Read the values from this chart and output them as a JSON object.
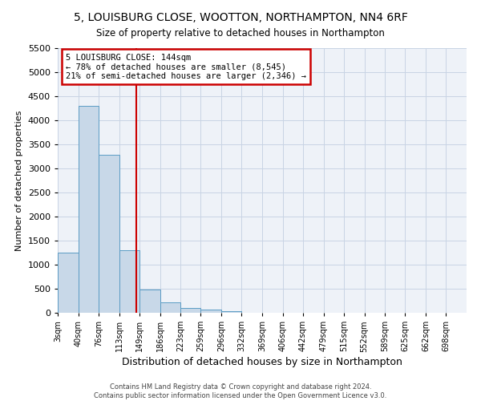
{
  "title1": "5, LOUISBURG CLOSE, WOOTTON, NORTHAMPTON, NN4 6RF",
  "title2": "Size of property relative to detached houses in Northampton",
  "xlabel": "Distribution of detached houses by size in Northampton",
  "ylabel": "Number of detached properties",
  "footnote1": "Contains HM Land Registry data © Crown copyright and database right 2024.",
  "footnote2": "Contains public sector information licensed under the Open Government Licence v3.0.",
  "annotation_title": "5 LOUISBURG CLOSE: 144sqm",
  "annotation_line1": "← 78% of detached houses are smaller (8,545)",
  "annotation_line2": "21% of semi-detached houses are larger (2,346) →",
  "property_size": 144,
  "bar_color": "#c8d8e8",
  "bar_edge_color": "#5b9cc4",
  "vline_color": "#cc0000",
  "annotation_box_edge_color": "#cc0000",
  "grid_color": "#c8d4e4",
  "background_color": "#eef2f8",
  "bin_edges": [
    3,
    40,
    76,
    113,
    149,
    186,
    223,
    259,
    296,
    332,
    369,
    406,
    442,
    479,
    515,
    552,
    589,
    625,
    662,
    698,
    735
  ],
  "bar_heights": [
    1250,
    4300,
    3280,
    1300,
    490,
    210,
    100,
    60,
    40,
    0,
    0,
    0,
    0,
    0,
    0,
    0,
    0,
    0,
    0,
    0
  ],
  "ylim": [
    0,
    5500
  ],
  "yticks": [
    0,
    500,
    1000,
    1500,
    2000,
    2500,
    3000,
    3500,
    4000,
    4500,
    5000,
    5500
  ]
}
